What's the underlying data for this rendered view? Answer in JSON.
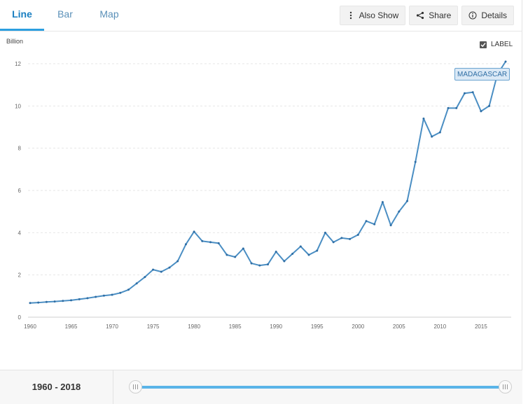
{
  "tabs": [
    {
      "label": "Line",
      "active": true
    },
    {
      "label": "Bar",
      "active": false
    },
    {
      "label": "Map",
      "active": false
    }
  ],
  "actions": {
    "also_show": "Also Show",
    "share": "Share",
    "details": "Details"
  },
  "label_toggle": {
    "text": "LABEL",
    "checked": true
  },
  "series_tag": "MADAGASCAR",
  "range": {
    "text": "1960 - 2018",
    "start": 1960,
    "end": 2018
  },
  "colors": {
    "line": "#4a8ec3",
    "accent": "#2c9fe0",
    "tag_bg": "#dbe9f6"
  },
  "chart_data": {
    "type": "line",
    "unit_label": "Billion",
    "ylim": [
      0,
      12
    ],
    "yticks": [
      0,
      2,
      4,
      6,
      8,
      10,
      12
    ],
    "xlim": [
      1960,
      2018
    ],
    "xticks": [
      1960,
      1965,
      1970,
      1975,
      1980,
      1985,
      1990,
      1995,
      2000,
      2005,
      2010,
      2015
    ],
    "grid": true,
    "series": [
      {
        "name": "MADAGASCAR",
        "x": [
          1960,
          1961,
          1962,
          1963,
          1964,
          1965,
          1966,
          1967,
          1968,
          1969,
          1970,
          1971,
          1972,
          1973,
          1974,
          1975,
          1976,
          1977,
          1978,
          1979,
          1980,
          1981,
          1982,
          1983,
          1984,
          1985,
          1986,
          1987,
          1988,
          1989,
          1990,
          1991,
          1992,
          1993,
          1994,
          1995,
          1996,
          1997,
          1998,
          1999,
          2000,
          2001,
          2002,
          2003,
          2004,
          2005,
          2006,
          2007,
          2008,
          2009,
          2010,
          2011,
          2012,
          2013,
          2014,
          2015,
          2016,
          2017,
          2018
        ],
        "values": [
          0.67,
          0.69,
          0.72,
          0.74,
          0.77,
          0.8,
          0.85,
          0.9,
          0.96,
          1.02,
          1.06,
          1.15,
          1.3,
          1.6,
          1.9,
          2.25,
          2.15,
          2.35,
          2.65,
          3.45,
          4.05,
          3.6,
          3.55,
          3.5,
          2.95,
          2.85,
          3.25,
          2.55,
          2.45,
          2.5,
          3.1,
          2.65,
          3.0,
          3.35,
          2.95,
          3.15,
          4.0,
          3.55,
          3.75,
          3.7,
          3.9,
          4.55,
          4.4,
          5.45,
          4.35,
          5.0,
          5.5,
          7.35,
          9.4,
          8.55,
          8.75,
          9.9,
          9.9,
          10.6,
          10.65,
          9.75,
          10.0,
          11.5,
          12.1
        ]
      }
    ]
  }
}
